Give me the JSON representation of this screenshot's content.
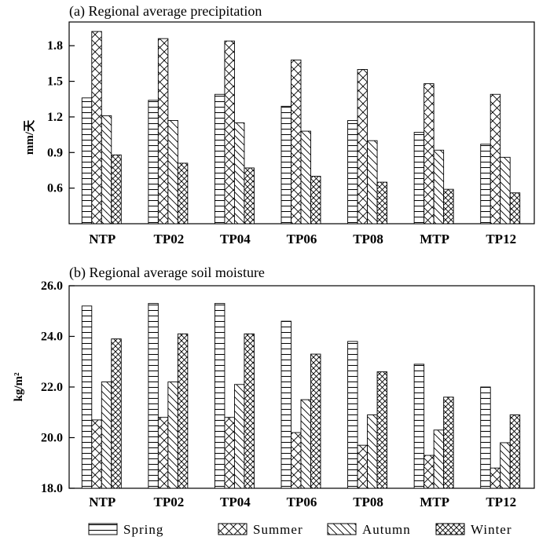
{
  "chart_data": [
    {
      "type": "bar",
      "title": "(a) Regional average precipitation",
      "xlabel": "",
      "ylabel": "mm/天",
      "ylim": [
        0.3,
        2.0
      ],
      "yticks": [
        "0.6",
        "0.9",
        "1.2",
        "1.5",
        "1.8"
      ],
      "categories": [
        "NTP",
        "TP02",
        "TP04",
        "TP06",
        "TP08",
        "MTP",
        "TP12"
      ],
      "series": [
        {
          "name": "Spring",
          "values": [
            1.36,
            1.34,
            1.39,
            1.29,
            1.17,
            1.07,
            0.97
          ]
        },
        {
          "name": "Summer",
          "values": [
            1.92,
            1.86,
            1.84,
            1.68,
            1.6,
            1.48,
            1.39
          ]
        },
        {
          "name": "Autumn",
          "values": [
            1.21,
            1.17,
            1.15,
            1.08,
            1.0,
            0.92,
            0.86
          ]
        },
        {
          "name": "Winter",
          "values": [
            0.88,
            0.81,
            0.77,
            0.7,
            0.65,
            0.59,
            0.56
          ]
        }
      ]
    },
    {
      "type": "bar",
      "title": "(b) Regional average soil moisture",
      "xlabel": "",
      "ylabel": "kg/m²",
      "ylim": [
        18.0,
        26.0
      ],
      "yticks": [
        "18.0",
        "20.0",
        "22.0",
        "24.0",
        "26.0"
      ],
      "categories": [
        "NTP",
        "TP02",
        "TP04",
        "TP06",
        "TP08",
        "MTP",
        "TP12"
      ],
      "series": [
        {
          "name": "Spring",
          "values": [
            25.2,
            25.3,
            25.3,
            24.6,
            23.8,
            22.9,
            22.0
          ]
        },
        {
          "name": "Summer",
          "values": [
            20.7,
            20.8,
            20.8,
            20.2,
            19.7,
            19.3,
            18.8
          ]
        },
        {
          "name": "Autumn",
          "values": [
            22.2,
            22.2,
            22.1,
            21.5,
            20.9,
            20.3,
            19.8
          ]
        },
        {
          "name": "Winter",
          "values": [
            23.9,
            24.1,
            24.1,
            23.3,
            22.6,
            21.6,
            20.9
          ]
        }
      ]
    }
  ],
  "legend": {
    "items": [
      {
        "label": "Spring",
        "pattern": "horizontal-lines"
      },
      {
        "label": "Summer",
        "pattern": "crosshatch-diagonal"
      },
      {
        "label": "Autumn",
        "pattern": "back-diagonal"
      },
      {
        "label": "Winter",
        "pattern": "dense-crosshatch"
      }
    ]
  }
}
